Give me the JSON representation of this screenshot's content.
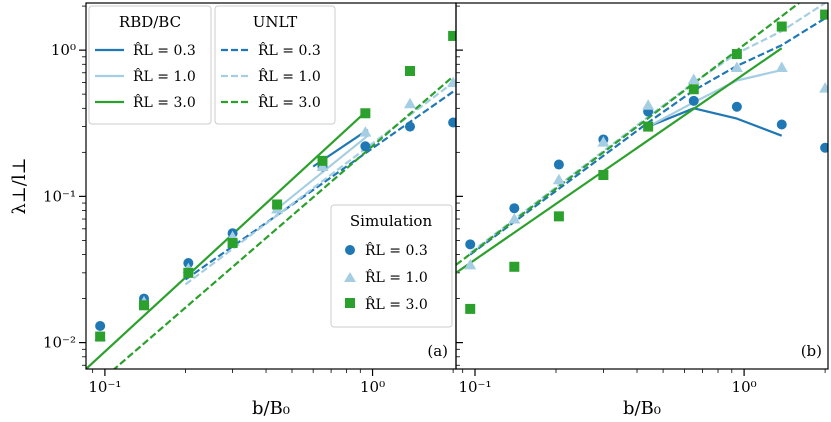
{
  "figure": {
    "ylabel": "λ⊥/l⊥",
    "xlabel": "b/B₀"
  },
  "legends": {
    "rbd_title": "RBD/BC",
    "unlt_title": "UNLT",
    "sim_title": "Simulation",
    "entries": [
      "R̂L = 0.3",
      "R̂L = 1.0",
      "R̂L = 3.0"
    ]
  },
  "colors": {
    "r03": "#1f77b4",
    "r10": "#a6cee3",
    "r30": "#2ca02c"
  },
  "chart_data": [
    {
      "type": "line",
      "panel_label": "(a)",
      "xscale": "log",
      "yscale": "log",
      "xlim": [
        0.085,
        2.05
      ],
      "ylim": [
        0.0066,
        2.1
      ],
      "xticks": [
        0.1,
        1
      ],
      "xtick_labels": [
        "10⁻¹",
        "10⁰"
      ],
      "yticks": [
        0.01,
        0.1,
        1
      ],
      "ytick_labels": [
        "10⁻²",
        "10⁻¹",
        "10⁰"
      ],
      "series": [
        {
          "name": "RBD/BC, R̂L = 0.3",
          "style": "solid",
          "color": "#1f77b4",
          "x": [
            0.6,
            0.96
          ],
          "y": [
            0.16,
            0.285
          ]
        },
        {
          "name": "RBD/BC, R̂L = 1.0",
          "style": "solid",
          "color": "#a6cee3",
          "x": [
            0.45,
            0.96
          ],
          "y": [
            0.085,
            0.26
          ]
        },
        {
          "name": "RBD/BC, R̂L = 3.0",
          "style": "solid",
          "color": "#2ca02c",
          "x": [
            0.085,
            0.96
          ],
          "y": [
            0.0066,
            0.39
          ]
        },
        {
          "name": "UNLT, R̂L = 0.3",
          "style": "dashed",
          "color": "#1f77b4",
          "x": [
            0.2,
            2.0
          ],
          "y": [
            0.027,
            0.52
          ]
        },
        {
          "name": "UNLT, R̂L = 1.0",
          "style": "dashed",
          "color": "#a6cee3",
          "x": [
            0.2,
            2.0
          ],
          "y": [
            0.025,
            0.6
          ]
        },
        {
          "name": "UNLT, R̂L = 3.0",
          "style": "dashed",
          "color": "#2ca02c",
          "x": [
            0.1,
            2.0
          ],
          "y": [
            0.0058,
            0.66
          ]
        },
        {
          "name": "Simulation, R̂L = 0.3",
          "style": "circle",
          "color": "#1f77b4",
          "x": [
            0.096,
            0.14,
            0.205,
            0.3,
            0.44,
            0.65,
            0.94,
            1.38,
            2.0
          ],
          "y": [
            0.013,
            0.02,
            0.035,
            0.056,
            0.085,
            0.16,
            0.22,
            0.3,
            0.32
          ]
        },
        {
          "name": "Simulation, R̂L = 1.0",
          "style": "triangle",
          "color": "#a6cee3",
          "x": [
            0.096,
            0.14,
            0.205,
            0.3,
            0.44,
            0.65,
            0.94,
            1.38,
            2.0
          ],
          "y": [
            0.011,
            0.019,
            0.032,
            0.053,
            0.082,
            0.16,
            0.275,
            0.43,
            0.6
          ]
        },
        {
          "name": "Simulation, R̂L = 3.0",
          "style": "square",
          "color": "#2ca02c",
          "x": [
            0.096,
            0.14,
            0.205,
            0.3,
            0.44,
            0.65,
            0.94,
            1.38,
            2.0
          ],
          "y": [
            0.011,
            0.018,
            0.03,
            0.048,
            0.088,
            0.175,
            0.37,
            0.72,
            1.25
          ]
        }
      ]
    },
    {
      "type": "line",
      "panel_label": "(b)",
      "xscale": "log",
      "yscale": "log",
      "xlim": [
        0.085,
        2.05
      ],
      "ylim": [
        0.0066,
        2.1
      ],
      "xticks": [
        0.1,
        1
      ],
      "xtick_labels": [
        "10⁻¹",
        "10⁰"
      ],
      "yticks": [
        0.01,
        0.1,
        1
      ],
      "ytick_labels": [
        "",
        "",
        ""
      ],
      "series": [
        {
          "name": "RBD/BC, R̂L = 0.3",
          "style": "solid",
          "color": "#1f77b4",
          "x": [
            0.44,
            0.65,
            0.94,
            1.38
          ],
          "y": [
            0.3,
            0.4,
            0.34,
            0.26
          ]
        },
        {
          "name": "RBD/BC, R̂L = 1.0",
          "style": "solid",
          "color": "#a6cee3",
          "x": [
            0.44,
            0.65,
            0.94,
            1.38
          ],
          "y": [
            0.3,
            0.44,
            0.62,
            0.73
          ]
        },
        {
          "name": "RBD/BC, R̂L = 3.0",
          "style": "solid",
          "color": "#2ca02c",
          "x": [
            0.085,
            1.38
          ],
          "y": [
            0.03,
            1.03
          ]
        },
        {
          "name": "UNLT, R̂L = 0.3",
          "style": "dashed",
          "color": "#1f77b4",
          "x": [
            0.096,
            0.44,
            0.65,
            0.94,
            1.38,
            2.0
          ],
          "y": [
            0.04,
            0.32,
            0.53,
            0.78,
            1.08,
            1.65
          ]
        },
        {
          "name": "UNLT, R̂L = 1.0",
          "style": "dashed",
          "color": "#a6cee3",
          "x": [
            0.096,
            0.44,
            0.65,
            0.94,
            1.38,
            2.0
          ],
          "y": [
            0.041,
            0.35,
            0.6,
            0.95,
            1.35,
            2.1
          ]
        },
        {
          "name": "UNLT, R̂L = 3.0",
          "style": "dashed",
          "color": "#2ca02c",
          "x": [
            0.085,
            1.6
          ],
          "y": [
            0.034,
            2.1
          ]
        },
        {
          "name": "Simulation, R̂L = 0.3",
          "style": "circle",
          "color": "#1f77b4",
          "x": [
            0.096,
            0.14,
            0.205,
            0.3,
            0.44,
            0.65,
            0.94,
            1.38,
            2.0
          ],
          "y": [
            0.047,
            0.083,
            0.165,
            0.245,
            0.38,
            0.45,
            0.41,
            0.31,
            0.215
          ]
        },
        {
          "name": "Simulation, R̂L = 1.0",
          "style": "triangle",
          "color": "#a6cee3",
          "x": [
            0.096,
            0.14,
            0.205,
            0.3,
            0.44,
            0.65,
            0.94,
            1.38,
            2.0
          ],
          "y": [
            0.034,
            0.07,
            0.13,
            0.235,
            0.42,
            0.63,
            0.76,
            0.76,
            0.55
          ]
        },
        {
          "name": "Simulation, R̂L = 3.0",
          "style": "square",
          "color": "#2ca02c",
          "x": [
            0.096,
            0.14,
            0.205,
            0.3,
            0.44,
            0.65,
            0.94,
            1.38,
            2.0
          ],
          "y": [
            0.017,
            0.033,
            0.073,
            0.14,
            0.3,
            0.54,
            0.94,
            1.45,
            1.75
          ]
        }
      ]
    }
  ]
}
